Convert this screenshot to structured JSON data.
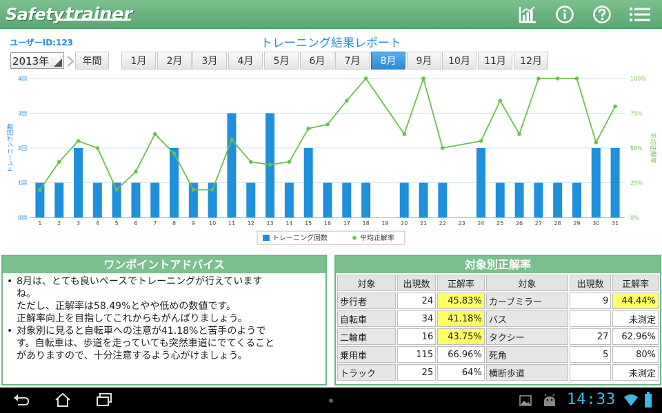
{
  "app": {
    "logo_part1": "Safety",
    "logo_part2": "trainer"
  },
  "toolbar_icons": [
    "bar-chart-icon",
    "info-icon",
    "help-icon",
    "menu-icon"
  ],
  "header": {
    "user_id": "ユーザーID:123",
    "title": "トレーニング結果レポート"
  },
  "year_select": {
    "value": "2013年"
  },
  "period_tabs": [
    {
      "label": "年間"
    },
    {
      "label": "1月"
    },
    {
      "label": "2月"
    },
    {
      "label": "3月"
    },
    {
      "label": "4月"
    },
    {
      "label": "5月"
    },
    {
      "label": "6月"
    },
    {
      "label": "7月"
    },
    {
      "label": "8月"
    },
    {
      "label": "9月"
    },
    {
      "label": "10月"
    },
    {
      "label": "11月"
    },
    {
      "label": "12月"
    }
  ],
  "active_tab": "8月",
  "chart_data": {
    "type": "bar+line",
    "x": [
      1,
      2,
      3,
      4,
      5,
      6,
      7,
      8,
      9,
      10,
      11,
      12,
      13,
      14,
      15,
      16,
      17,
      18,
      19,
      20,
      21,
      22,
      23,
      24,
      25,
      26,
      27,
      28,
      29,
      30,
      31
    ],
    "series": [
      {
        "name": "トレーニング回数",
        "type": "bar",
        "axis": "left",
        "color": "#1e90dc",
        "values": [
          1,
          1,
          2,
          1,
          1,
          1,
          1,
          2,
          1,
          1,
          3,
          1,
          3,
          1,
          2,
          1,
          1,
          1,
          0,
          1,
          1,
          1,
          0,
          2,
          1,
          1,
          1,
          1,
          1,
          2,
          2
        ]
      },
      {
        "name": "平均正解率",
        "type": "line",
        "axis": "right",
        "color": "#6cbf4a",
        "values": [
          20,
          40,
          55,
          50,
          20,
          33,
          60,
          46,
          20,
          20,
          56,
          40,
          38,
          40,
          64,
          67,
          84,
          100,
          null,
          60,
          100,
          50,
          null,
          55,
          84,
          60,
          100,
          100,
          100,
          54,
          80
        ]
      }
    ],
    "y_left": {
      "ticks": [
        "0回",
        "1回",
        "2回",
        "3回",
        "4回"
      ],
      "range": [
        0,
        4
      ],
      "label": "トレーニング回数"
    },
    "y_right": {
      "ticks": [
        "0%",
        "25%",
        "50%",
        "75%",
        "100%"
      ],
      "range": [
        0,
        100
      ],
      "label": "平均正解率"
    },
    "legend": [
      "トレーニング回数",
      "平均正解率"
    ],
    "legend_position": "bottom-center"
  },
  "advice": {
    "title": "ワンポイントアドバイス",
    "items": [
      "8月は、とても良いペースでトレーニングが行えています\nね。\nただし、正解率は58.49%とやや低めの数値です。\n正解率向上を目指してこれからもがんばりましょう。",
      "対象別に見ると自転車への注意が41.18%と苦手のようで\nす。自転車は、歩道を走っていても突然車道にでてくること\nがありますので、十分注意するよう心がけましょう。"
    ]
  },
  "accuracy": {
    "title": "対象別正解率",
    "headers": [
      "対象",
      "出現数",
      "正解率",
      "対象",
      "出現数",
      "正解率"
    ],
    "rows": [
      {
        "a_name": "歩行者",
        "a_count": "24",
        "a_rate": "45.83%",
        "a_hl": true,
        "b_name": "カーブミラー",
        "b_count": "9",
        "b_rate": "44.44%",
        "b_hl": true
      },
      {
        "a_name": "自転車",
        "a_count": "34",
        "a_rate": "41.18%",
        "a_hl": true,
        "b_name": "バス",
        "b_count": "",
        "b_rate": "未測定",
        "b_hl": false
      },
      {
        "a_name": "二輪車",
        "a_count": "16",
        "a_rate": "43.75%",
        "a_hl": true,
        "b_name": "タクシー",
        "b_count": "27",
        "b_rate": "62.96%",
        "b_hl": false
      },
      {
        "a_name": "乗用車",
        "a_count": "115",
        "a_rate": "66.96%",
        "a_hl": false,
        "b_name": "死角",
        "b_count": "5",
        "b_rate": "80%",
        "b_hl": false
      },
      {
        "a_name": "トラック",
        "a_count": "25",
        "a_rate": "64%",
        "a_hl": false,
        "b_name": "横断歩道",
        "b_count": "",
        "b_rate": "未測定",
        "b_hl": false
      }
    ],
    "highlight_color": "#ffff66"
  },
  "status_bar": {
    "clock": "14:33"
  },
  "nav_icons": [
    "back-icon",
    "home-icon",
    "recent-apps-icon"
  ]
}
